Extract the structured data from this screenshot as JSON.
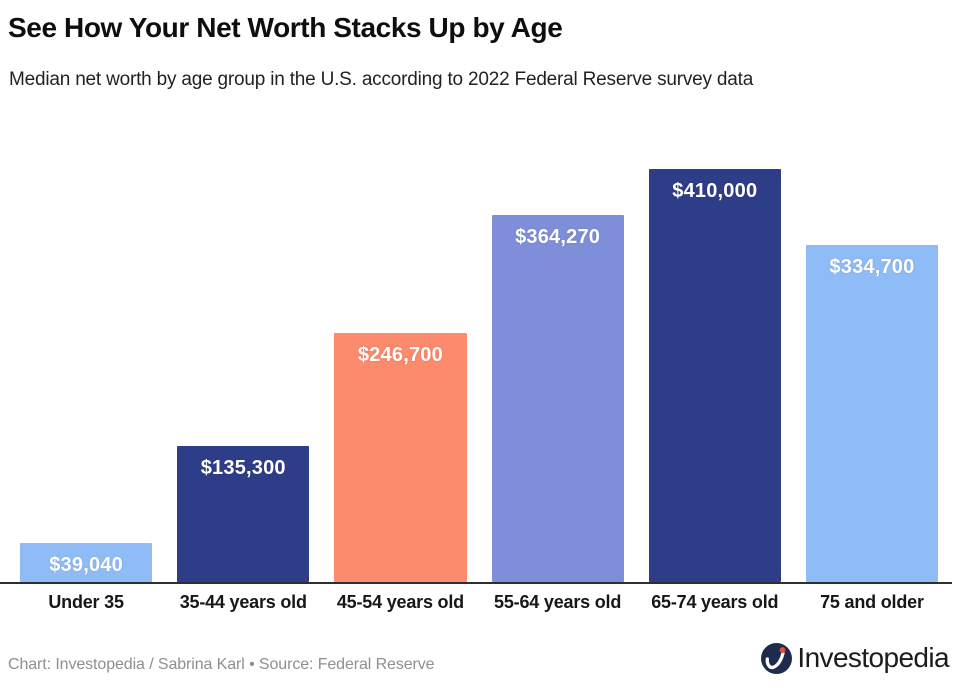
{
  "header": {
    "title": "See How Your Net Worth Stacks Up by Age",
    "subtitle": "Median net worth by age group in the U.S. according to 2022 Federal Reserve survey data"
  },
  "chart_data": {
    "type": "bar",
    "title": "See How Your Net Worth Stacks Up by Age",
    "subtitle": "Median net worth by age group in the U.S. according to 2022 Federal Reserve survey data",
    "categories": [
      "Under 35",
      "35-44 years old",
      "45-54 years old",
      "55-64 years old",
      "65-74 years old",
      "75 and older"
    ],
    "values": [
      39040,
      135300,
      246700,
      364270,
      410000,
      334700
    ],
    "value_labels": [
      "$39,040",
      "$135,300",
      "$246,700",
      "$364,270",
      "$410,000",
      "$334,700"
    ],
    "bar_colors": [
      "#8FBBF7",
      "#2E3D87",
      "#FC8A6C",
      "#7E8ED8",
      "#2E3D87",
      "#8FBBF7"
    ],
    "xlabel": "",
    "ylabel": "",
    "ylim": [
      0,
      410000
    ],
    "grid": false,
    "legend": false,
    "value_label_position": "inside-top",
    "value_label_color": "#FFFFFF",
    "axis_line_color": "#2D2F31",
    "category_label_color": "#161718",
    "background": "#FFFFFF"
  },
  "footer": {
    "credit": "Chart: Investopedia / Sabrina Karl • Source: Federal Reserve",
    "brand": "Investopedia",
    "brand_icon": "investopedia-swoosh-icon",
    "brand_icon_colors": {
      "circle": "#1F2B4E",
      "stroke": "#FFFFFF",
      "dot": "#E4502E"
    }
  }
}
